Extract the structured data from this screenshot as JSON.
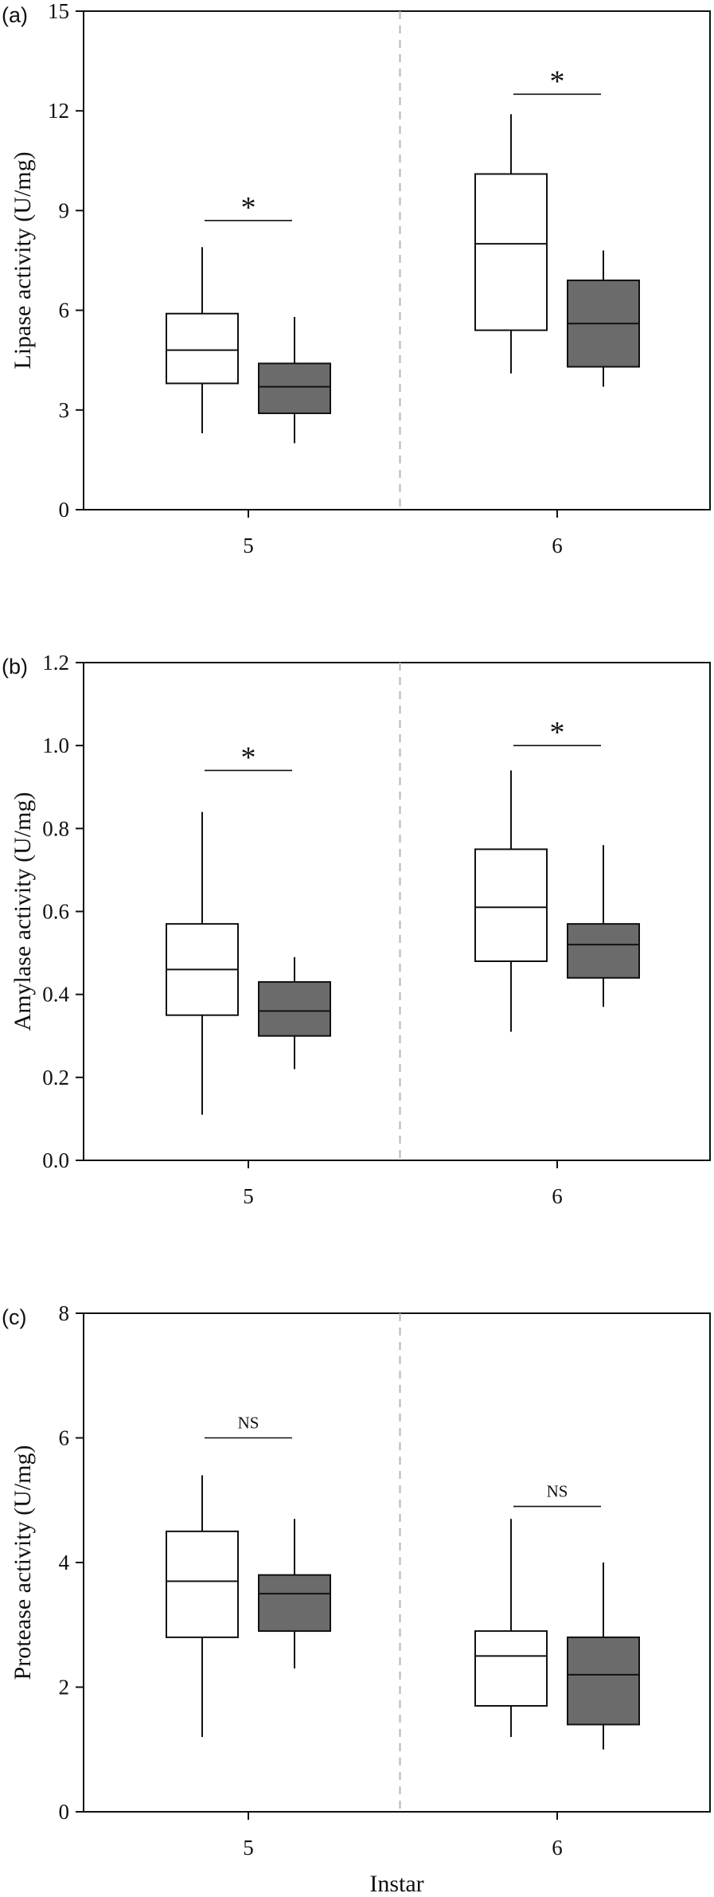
{
  "chart_data": [
    {
      "type": "box",
      "panel_label": "(a)",
      "ylabel": "Lipase activity (U/mg)",
      "xlabel": "",
      "ylim": [
        0,
        15
      ],
      "yticks": [
        "0",
        "3",
        "6",
        "9",
        "12",
        "15"
      ],
      "categories": [
        "5",
        "6"
      ],
      "series": [
        {
          "fill": "#ffffff",
          "boxes": [
            {
              "category": "5",
              "min": 2.3,
              "q1": 3.8,
              "median": 4.8,
              "q3": 5.9,
              "max": 7.9
            },
            {
              "category": "6",
              "min": 4.1,
              "q1": 5.4,
              "median": 8.0,
              "q3": 10.1,
              "max": 11.9
            }
          ]
        },
        {
          "fill": "#6b6b6b",
          "boxes": [
            {
              "category": "5",
              "min": 2.0,
              "q1": 2.9,
              "median": 3.7,
              "q3": 4.4,
              "max": 5.8
            },
            {
              "category": "6",
              "min": 3.7,
              "q1": 4.3,
              "median": 5.6,
              "q3": 6.9,
              "max": 7.8
            }
          ]
        }
      ],
      "significance": [
        {
          "category": "5",
          "label": "*",
          "y": 8.7
        },
        {
          "category": "6",
          "label": "*",
          "y": 12.5
        }
      ],
      "divider": "dashed",
      "grid": false
    },
    {
      "type": "box",
      "panel_label": "(b)",
      "ylabel": "Amylase activity (U/mg)",
      "xlabel": "",
      "ylim": [
        0,
        1.2
      ],
      "yticks": [
        "0.0",
        "0.2",
        "0.4",
        "0.6",
        "0.8",
        "1.0",
        "1.2"
      ],
      "categories": [
        "5",
        "6"
      ],
      "series": [
        {
          "fill": "#ffffff",
          "boxes": [
            {
              "category": "5",
              "min": 0.11,
              "q1": 0.35,
              "median": 0.46,
              "q3": 0.57,
              "max": 0.84
            },
            {
              "category": "6",
              "min": 0.31,
              "q1": 0.48,
              "median": 0.61,
              "q3": 0.75,
              "max": 0.94
            }
          ]
        },
        {
          "fill": "#6b6b6b",
          "boxes": [
            {
              "category": "5",
              "min": 0.22,
              "q1": 0.3,
              "median": 0.36,
              "q3": 0.43,
              "max": 0.49
            },
            {
              "category": "6",
              "min": 0.37,
              "q1": 0.44,
              "median": 0.52,
              "q3": 0.57,
              "max": 0.76
            }
          ]
        }
      ],
      "significance": [
        {
          "category": "5",
          "label": "*",
          "y": 0.94
        },
        {
          "category": "6",
          "label": "*",
          "y": 1.0
        }
      ],
      "divider": "dashed",
      "grid": false
    },
    {
      "type": "box",
      "panel_label": "(c)",
      "ylabel": "Protease activity (U/mg)",
      "xlabel": "Instar",
      "ylim": [
        0,
        8
      ],
      "yticks": [
        "0",
        "2",
        "4",
        "6",
        "8"
      ],
      "categories": [
        "5",
        "6"
      ],
      "series": [
        {
          "fill": "#ffffff",
          "boxes": [
            {
              "category": "5",
              "min": 1.2,
              "q1": 2.8,
              "median": 3.7,
              "q3": 4.5,
              "max": 5.4
            },
            {
              "category": "6",
              "min": 1.2,
              "q1": 1.7,
              "median": 2.5,
              "q3": 2.9,
              "max": 4.7
            }
          ]
        },
        {
          "fill": "#6b6b6b",
          "boxes": [
            {
              "category": "5",
              "min": 2.3,
              "q1": 2.9,
              "median": 3.5,
              "q3": 3.8,
              "max": 4.7
            },
            {
              "category": "6",
              "min": 1.0,
              "q1": 1.4,
              "median": 2.2,
              "q3": 2.8,
              "max": 4.0
            }
          ]
        }
      ],
      "significance": [
        {
          "category": "5",
          "label": "NS",
          "y": 6.0
        },
        {
          "category": "6",
          "label": "NS",
          "y": 4.9
        }
      ],
      "divider": "dashed",
      "grid": false
    }
  ]
}
